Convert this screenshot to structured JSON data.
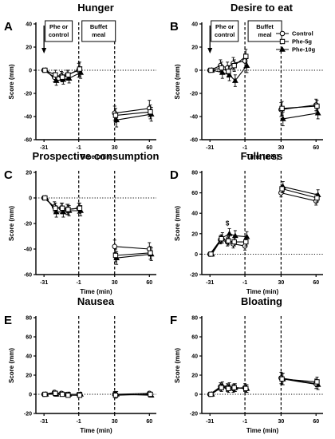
{
  "figure": {
    "legend": [
      {
        "label": "Control",
        "marker": "circle-open"
      },
      {
        "label": "Phe-5g",
        "marker": "square-open"
      },
      {
        "label": "Phe-10g",
        "marker": "triangle-filled"
      }
    ],
    "annotations": {
      "phe_box": [
        "Phe or",
        "control"
      ],
      "buffet_box": [
        "Buffet",
        "meal"
      ],
      "significance": "$"
    }
  },
  "chart_data": [
    {
      "letter": "A",
      "title": "Hunger",
      "type": "line",
      "xlabel": "Time (min)",
      "ylabel": "Score (mm)",
      "x": [
        -31,
        -22,
        -16,
        -11,
        -1,
        30,
        60
      ],
      "x_ticks": [
        "-31",
        "-1",
        "30",
        "60"
      ],
      "ylim": [
        -60,
        40
      ],
      "yticks": [
        "40",
        "20",
        "0",
        "-20",
        "-40",
        "-60"
      ],
      "annotation_boxes": true,
      "arrow_at": -31,
      "series": [
        {
          "name": "Control",
          "values": [
            0,
            -6,
            -5,
            -4,
            0,
            -37,
            -33
          ],
          "err": [
            1,
            4,
            4,
            4,
            6,
            6,
            7
          ]
        },
        {
          "name": "Phe-5g",
          "values": [
            0,
            -4,
            -6,
            -4,
            1,
            -39,
            -36
          ],
          "err": [
            1,
            4,
            4,
            4,
            6,
            6,
            6
          ]
        },
        {
          "name": "Phe-10g",
          "values": [
            0,
            -9,
            -8,
            -7,
            -2,
            -43,
            -38
          ],
          "err": [
            1,
            4,
            4,
            4,
            5,
            6,
            6
          ]
        }
      ]
    },
    {
      "letter": "B",
      "title": "Desire to eat",
      "type": "line",
      "xlabel": "Time (min)",
      "ylabel": "Score (mm)",
      "x": [
        -31,
        -22,
        -16,
        -11,
        -1,
        30,
        60
      ],
      "x_ticks": [
        "-31",
        "-1",
        "30",
        "60"
      ],
      "ylim": [
        -60,
        40
      ],
      "yticks": [
        "40",
        "20",
        "0",
        "-20",
        "-40",
        "-60"
      ],
      "annotation_boxes": true,
      "arrow_at": -31,
      "legend": true,
      "series": [
        {
          "name": "Control",
          "values": [
            0,
            4,
            2,
            6,
            8,
            -34,
            -30
          ],
          "err": [
            1,
            5,
            5,
            5,
            6,
            6,
            5
          ]
        },
        {
          "name": "Phe-5g",
          "values": [
            0,
            2,
            -1,
            4,
            12,
            -33,
            -31
          ],
          "err": [
            1,
            5,
            5,
            5,
            6,
            6,
            5
          ]
        },
        {
          "name": "Phe-10g",
          "values": [
            0,
            -2,
            -4,
            -9,
            4,
            -42,
            -37
          ],
          "err": [
            1,
            5,
            5,
            5,
            6,
            6,
            5
          ]
        }
      ]
    },
    {
      "letter": "C",
      "title": "Prospective consumption",
      "type": "line",
      "xlabel": "Time (min)",
      "ylabel": "Score (mm)",
      "x": [
        -31,
        -22,
        -16,
        -11,
        -1,
        30,
        60
      ],
      "x_ticks": [
        "-31",
        "-1",
        "30",
        "60"
      ],
      "ylim": [
        -60,
        20
      ],
      "yticks": [
        "20",
        "0",
        "-20",
        "-40",
        "-60"
      ],
      "series": [
        {
          "name": "Control",
          "values": [
            0,
            -7,
            -8,
            -9,
            -8,
            -38,
            -40
          ],
          "err": [
            1,
            4,
            4,
            4,
            4,
            5,
            5
          ]
        },
        {
          "name": "Phe-5g",
          "values": [
            0,
            -8,
            -8,
            -9,
            -8,
            -45,
            -43
          ],
          "err": [
            1,
            4,
            4,
            4,
            4,
            5,
            5
          ]
        },
        {
          "name": "Phe-10g",
          "values": [
            0,
            -11,
            -11,
            -10,
            -10,
            -47,
            -44
          ],
          "err": [
            1,
            4,
            4,
            4,
            4,
            5,
            5
          ]
        }
      ]
    },
    {
      "letter": "D",
      "title": "Fullness",
      "type": "line",
      "xlabel": "Time (min)",
      "ylabel": "Score (mm)",
      "x": [
        -31,
        -22,
        -16,
        -11,
        -1,
        30,
        60
      ],
      "x_ticks": [
        "-31",
        "-1",
        "30",
        "60"
      ],
      "ylim": [
        -20,
        80
      ],
      "yticks": [
        "80",
        "60",
        "40",
        "20",
        "0",
        "-20"
      ],
      "significance_at": -16,
      "series": [
        {
          "name": "Control",
          "values": [
            0,
            14,
            12,
            10,
            8,
            60,
            52
          ],
          "err": [
            1,
            4,
            4,
            4,
            4,
            4,
            4
          ]
        },
        {
          "name": "Phe-5g",
          "values": [
            0,
            15,
            13,
            12,
            12,
            64,
            55
          ],
          "err": [
            1,
            4,
            4,
            4,
            4,
            4,
            4
          ]
        },
        {
          "name": "Phe-10g",
          "values": [
            0,
            16,
            20,
            18,
            17,
            66,
            58
          ],
          "err": [
            1,
            5,
            5,
            5,
            5,
            5,
            5
          ]
        }
      ]
    },
    {
      "letter": "E",
      "title": "Nausea",
      "type": "line",
      "xlabel": "Time (min)",
      "ylabel": "Score (mm)",
      "x": [
        -31,
        -22,
        -16,
        -11,
        -1,
        30,
        60
      ],
      "x_ticks": [
        "-31",
        "-1",
        "30",
        "60"
      ],
      "ylim": [
        -20,
        80
      ],
      "yticks": [
        "80",
        "60",
        "40",
        "20",
        "0",
        "-20"
      ],
      "series": [
        {
          "name": "Control",
          "values": [
            0,
            2,
            1,
            0,
            0,
            0,
            1
          ],
          "err": [
            1,
            2,
            2,
            2,
            2,
            3,
            2
          ]
        },
        {
          "name": "Phe-5g",
          "values": [
            0,
            1,
            0,
            -1,
            -1,
            -1,
            0
          ],
          "err": [
            1,
            2,
            2,
            2,
            2,
            3,
            2
          ]
        },
        {
          "name": "Phe-10g",
          "values": [
            0,
            0,
            0,
            0,
            0,
            0,
            -1
          ],
          "err": [
            1,
            2,
            2,
            2,
            2,
            3,
            2
          ]
        }
      ]
    },
    {
      "letter": "F",
      "title": "Bloating",
      "type": "line",
      "xlabel": "Time (min)",
      "ylabel": "Score (mm)",
      "x": [
        -31,
        -22,
        -16,
        -11,
        -1,
        30,
        60
      ],
      "x_ticks": [
        "-31",
        "-1",
        "30",
        "60"
      ],
      "ylim": [
        -20,
        80
      ],
      "yticks": [
        "80",
        "60",
        "40",
        "20",
        "0",
        "-20"
      ],
      "series": [
        {
          "name": "Control",
          "values": [
            0,
            8,
            7,
            6,
            7,
            17,
            11
          ],
          "err": [
            1,
            4,
            4,
            4,
            4,
            6,
            5
          ]
        },
        {
          "name": "Phe-5g",
          "values": [
            0,
            7,
            6,
            7,
            6,
            16,
            13
          ],
          "err": [
            1,
            4,
            4,
            4,
            4,
            6,
            5
          ]
        },
        {
          "name": "Phe-10g",
          "values": [
            0,
            9,
            8,
            7,
            6,
            16,
            10
          ],
          "err": [
            1,
            4,
            4,
            4,
            4,
            6,
            5
          ]
        }
      ]
    }
  ]
}
